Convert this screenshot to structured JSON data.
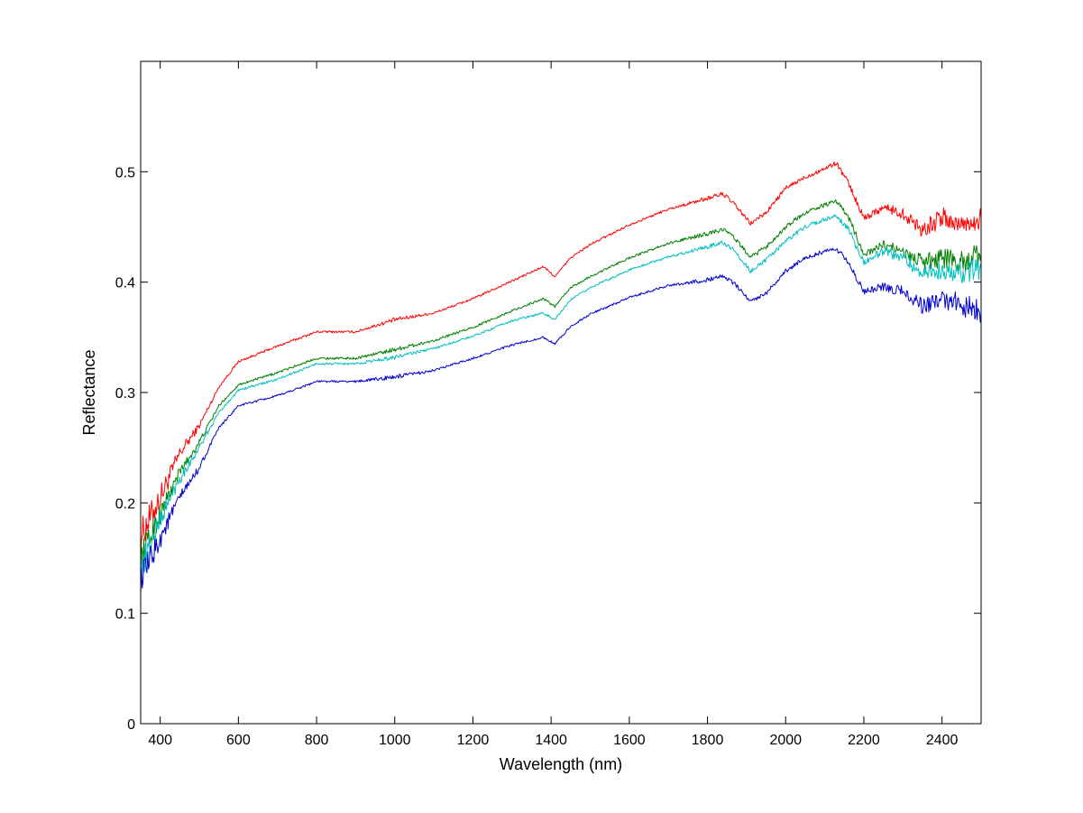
{
  "chart_data": {
    "type": "line",
    "title": "",
    "xlabel": "Wavelength (nm)",
    "ylabel": "Reflectance",
    "xlim": [
      350,
      2500
    ],
    "ylim": [
      0,
      0.6
    ],
    "xticks": [
      400,
      600,
      800,
      1000,
      1200,
      1400,
      1600,
      1800,
      2000,
      2200,
      2400
    ],
    "xtick_labels": [
      "400",
      "600",
      "800",
      "1000",
      "1200",
      "1400",
      "1600",
      "1800",
      "2000",
      "2200",
      "2400"
    ],
    "yticks": [
      0,
      0.1,
      0.2,
      0.3,
      0.4,
      0.5
    ],
    "ytick_labels": [
      "0",
      "0.1",
      "0.2",
      "0.3",
      "0.4",
      "0.5"
    ],
    "grid": false,
    "legend": "none",
    "x": [
      350,
      400,
      450,
      500,
      550,
      600,
      700,
      800,
      900,
      1000,
      1100,
      1200,
      1300,
      1380,
      1410,
      1450,
      1500,
      1600,
      1700,
      1800,
      1840,
      1870,
      1910,
      1950,
      2000,
      2050,
      2100,
      2130,
      2160,
      2200,
      2250,
      2300,
      2350,
      2400,
      2450,
      2500
    ],
    "series": [
      {
        "name": "red",
        "color": "#ff0000",
        "noise": [
          0.015,
          0.012,
          0.006,
          0.003,
          0.001,
          0.001,
          0.001,
          0.001,
          0.001,
          0.002,
          0.001,
          0.001,
          0.001,
          0.001,
          0.001,
          0.001,
          0.001,
          0.001,
          0.001,
          0.002,
          0.002,
          0.002,
          0.002,
          0.002,
          0.002,
          0.002,
          0.002,
          0.002,
          0.003,
          0.003,
          0.004,
          0.005,
          0.008,
          0.01,
          0.01,
          0.012
        ],
        "values": [
          0.17,
          0.205,
          0.245,
          0.27,
          0.305,
          0.328,
          0.342,
          0.355,
          0.355,
          0.366,
          0.372,
          0.385,
          0.401,
          0.414,
          0.405,
          0.422,
          0.434,
          0.452,
          0.466,
          0.476,
          0.48,
          0.47,
          0.453,
          0.463,
          0.485,
          0.495,
          0.503,
          0.508,
          0.49,
          0.458,
          0.468,
          0.462,
          0.448,
          0.458,
          0.452,
          0.458
        ]
      },
      {
        "name": "green",
        "color": "#008000",
        "noise": [
          0.013,
          0.01,
          0.005,
          0.003,
          0.001,
          0.001,
          0.001,
          0.001,
          0.001,
          0.002,
          0.001,
          0.001,
          0.001,
          0.001,
          0.001,
          0.001,
          0.001,
          0.001,
          0.001,
          0.002,
          0.002,
          0.002,
          0.002,
          0.002,
          0.002,
          0.002,
          0.002,
          0.002,
          0.003,
          0.003,
          0.004,
          0.005,
          0.007,
          0.009,
          0.01,
          0.011
        ],
        "values": [
          0.15,
          0.19,
          0.228,
          0.255,
          0.288,
          0.307,
          0.318,
          0.331,
          0.331,
          0.339,
          0.347,
          0.359,
          0.374,
          0.385,
          0.378,
          0.395,
          0.405,
          0.422,
          0.435,
          0.444,
          0.448,
          0.44,
          0.422,
          0.432,
          0.45,
          0.463,
          0.47,
          0.473,
          0.46,
          0.425,
          0.434,
          0.428,
          0.418,
          0.422,
          0.418,
          0.425
        ]
      },
      {
        "name": "cyan",
        "color": "#00bfbf",
        "noise": [
          0.013,
          0.01,
          0.005,
          0.003,
          0.001,
          0.001,
          0.001,
          0.001,
          0.001,
          0.002,
          0.001,
          0.001,
          0.001,
          0.001,
          0.001,
          0.001,
          0.001,
          0.001,
          0.001,
          0.002,
          0.002,
          0.002,
          0.002,
          0.002,
          0.002,
          0.002,
          0.002,
          0.002,
          0.003,
          0.003,
          0.004,
          0.005,
          0.007,
          0.009,
          0.01,
          0.011
        ],
        "values": [
          0.14,
          0.185,
          0.222,
          0.25,
          0.282,
          0.302,
          0.312,
          0.326,
          0.326,
          0.332,
          0.34,
          0.351,
          0.365,
          0.372,
          0.366,
          0.384,
          0.395,
          0.411,
          0.423,
          0.432,
          0.436,
          0.428,
          0.41,
          0.42,
          0.437,
          0.45,
          0.457,
          0.46,
          0.448,
          0.418,
          0.428,
          0.422,
          0.408,
          0.412,
          0.408,
          0.412
        ]
      },
      {
        "name": "blue",
        "color": "#0000cc",
        "noise": [
          0.013,
          0.01,
          0.005,
          0.003,
          0.001,
          0.001,
          0.001,
          0.001,
          0.001,
          0.002,
          0.001,
          0.001,
          0.001,
          0.001,
          0.001,
          0.001,
          0.001,
          0.001,
          0.001,
          0.002,
          0.002,
          0.002,
          0.002,
          0.002,
          0.002,
          0.002,
          0.002,
          0.002,
          0.003,
          0.003,
          0.004,
          0.005,
          0.007,
          0.009,
          0.01,
          0.011
        ],
        "values": [
          0.13,
          0.168,
          0.205,
          0.232,
          0.268,
          0.288,
          0.297,
          0.31,
          0.31,
          0.314,
          0.32,
          0.331,
          0.343,
          0.35,
          0.344,
          0.36,
          0.371,
          0.386,
          0.397,
          0.402,
          0.406,
          0.398,
          0.383,
          0.39,
          0.41,
          0.422,
          0.428,
          0.43,
          0.418,
          0.392,
          0.396,
          0.392,
          0.378,
          0.385,
          0.38,
          0.372
        ]
      }
    ]
  }
}
